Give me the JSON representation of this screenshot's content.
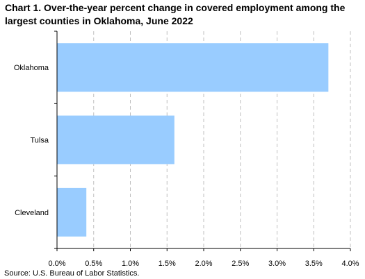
{
  "header": {
    "title": "Chart 1.  Over-the-year percent change in covered employment among the largest counties in Oklahoma, June 2022"
  },
  "footer": {
    "source": "Source: U.S. Bureau of Labor Statistics."
  },
  "colors": {
    "bar": "#99CCFF",
    "grid": "#BFBFBF",
    "axis": "#000000"
  },
  "chart_data": {
    "type": "bar",
    "orientation": "horizontal",
    "categories": [
      "Oklahoma",
      "Tulsa",
      "Cleveland"
    ],
    "values": [
      3.7,
      1.6,
      0.4
    ],
    "xlim": [
      0,
      4.0
    ],
    "xticks": [
      0,
      0.5,
      1.0,
      1.5,
      2.0,
      2.5,
      3.0,
      3.5,
      4.0
    ],
    "xtick_labels": [
      "0.0%",
      "0.5%",
      "1.0%",
      "1.5%",
      "2.0%",
      "2.5%",
      "3.0%",
      "3.5%",
      "4.0%"
    ],
    "grid": "vertical dashed",
    "legend": "none"
  }
}
